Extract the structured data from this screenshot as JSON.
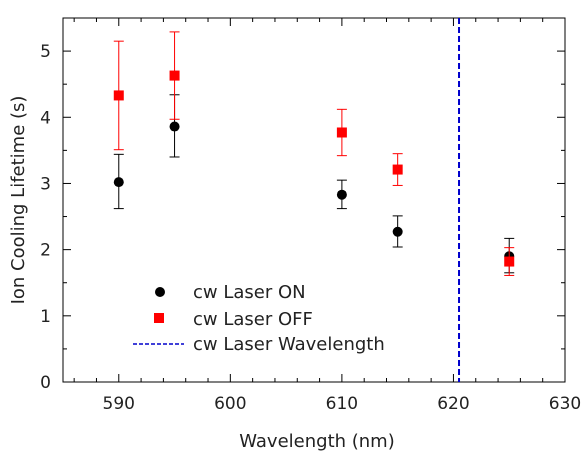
{
  "chart_data": {
    "type": "scatter",
    "xlabel": "Wavelength (nm)",
    "ylabel": "Ion Cooling Lifetime (s)",
    "xlim": [
      585,
      630
    ],
    "ylim": [
      0,
      5.5
    ],
    "x_ticks": [
      590,
      600,
      610,
      620,
      630
    ],
    "y_ticks": [
      0,
      1,
      2,
      3,
      4,
      5
    ],
    "grid": false,
    "legend_position": "lower-left",
    "series": [
      {
        "name": "cw Laser ON",
        "marker": "circle",
        "color": "#000000",
        "points": [
          {
            "x": 590,
            "y": 3.02,
            "err_low": 0.4,
            "err_high": 0.42
          },
          {
            "x": 595,
            "y": 3.86,
            "err_low": 0.46,
            "err_high": 0.48
          },
          {
            "x": 610,
            "y": 2.83,
            "err_low": 0.21,
            "err_high": 0.22
          },
          {
            "x": 615,
            "y": 2.27,
            "err_low": 0.23,
            "err_high": 0.24
          },
          {
            "x": 625,
            "y": 1.9,
            "err_low": 0.25,
            "err_high": 0.27
          }
        ]
      },
      {
        "name": "cw Laser OFF",
        "marker": "square",
        "color": "#ff0000",
        "points": [
          {
            "x": 590,
            "y": 4.33,
            "err_low": 0.82,
            "err_high": 0.82
          },
          {
            "x": 595,
            "y": 4.63,
            "err_low": 0.66,
            "err_high": 0.66
          },
          {
            "x": 610,
            "y": 3.77,
            "err_low": 0.35,
            "err_high": 0.35
          },
          {
            "x": 615,
            "y": 3.21,
            "err_low": 0.24,
            "err_high": 0.24
          },
          {
            "x": 625,
            "y": 1.82,
            "err_low": 0.21,
            "err_high": 0.21
          }
        ]
      }
    ],
    "vline": {
      "name": "cw Laser Wavelength",
      "x": 620.5,
      "style": "dashed",
      "color": "#0000cc"
    }
  }
}
